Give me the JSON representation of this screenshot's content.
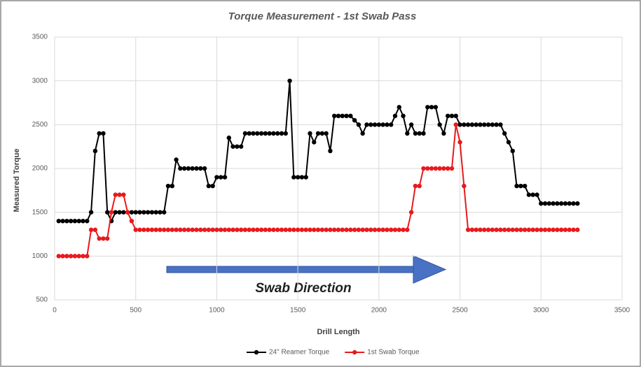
{
  "chart_data": {
    "type": "line",
    "title": "Torque Measurement - 1st Swab Pass",
    "xlabel": "Drill Length",
    "ylabel": "Measured Torque",
    "annotation": "Swab Direction",
    "xlim": [
      0,
      3500
    ],
    "xticks": [
      0,
      500,
      1000,
      1500,
      2000,
      2500,
      3000,
      3500
    ],
    "ylim": [
      500,
      3500
    ],
    "yticks": [
      500,
      1000,
      1500,
      2000,
      2500,
      3000,
      3500
    ],
    "grid": true,
    "legend": "bottom",
    "x": [
      25,
      50,
      75,
      100,
      125,
      150,
      175,
      200,
      225,
      250,
      275,
      300,
      325,
      350,
      375,
      400,
      425,
      450,
      475,
      500,
      525,
      550,
      575,
      600,
      625,
      650,
      675,
      700,
      725,
      750,
      775,
      800,
      825,
      850,
      875,
      900,
      925,
      950,
      975,
      1000,
      1025,
      1050,
      1075,
      1100,
      1125,
      1150,
      1175,
      1200,
      1225,
      1250,
      1275,
      1300,
      1325,
      1350,
      1375,
      1400,
      1425,
      1450,
      1475,
      1500,
      1525,
      1550,
      1575,
      1600,
      1625,
      1650,
      1675,
      1700,
      1725,
      1750,
      1775,
      1800,
      1825,
      1850,
      1875,
      1900,
      1925,
      1950,
      1975,
      2000,
      2025,
      2050,
      2075,
      2100,
      2125,
      2150,
      2175,
      2200,
      2225,
      2250,
      2275,
      2300,
      2325,
      2350,
      2375,
      2400,
      2425,
      2450,
      2475,
      2500,
      2525,
      2550,
      2575,
      2600,
      2625,
      2650,
      2675,
      2700,
      2725,
      2750,
      2775,
      2800,
      2825,
      2850,
      2875,
      2900,
      2925,
      2950,
      2975,
      3000,
      3025,
      3050,
      3075,
      3100,
      3125,
      3150,
      3175,
      3200,
      3225
    ],
    "series": [
      {
        "name": "24\" Reamer Torque",
        "color": "#000000",
        "values": [
          1400,
          1400,
          1400,
          1400,
          1400,
          1400,
          1400,
          1400,
          1500,
          2200,
          2400,
          2400,
          1500,
          1400,
          1500,
          1500,
          1500,
          1500,
          1500,
          1500,
          1500,
          1500,
          1500,
          1500,
          1500,
          1500,
          1500,
          1800,
          1800,
          2100,
          2000,
          2000,
          2000,
          2000,
          2000,
          2000,
          2000,
          1800,
          1800,
          1900,
          1900,
          1900,
          2350,
          2250,
          2250,
          2250,
          2400,
          2400,
          2400,
          2400,
          2400,
          2400,
          2400,
          2400,
          2400,
          2400,
          2400,
          3000,
          1900,
          1900,
          1900,
          1900,
          2400,
          2300,
          2400,
          2400,
          2400,
          2200,
          2600,
          2600,
          2600,
          2600,
          2600,
          2550,
          2500,
          2400,
          2500,
          2500,
          2500,
          2500,
          2500,
          2500,
          2500,
          2600,
          2700,
          2600,
          2400,
          2500,
          2400,
          2400,
          2400,
          2700,
          2700,
          2700,
          2500,
          2400,
          2600,
          2600,
          2600,
          2500,
          2500,
          2500,
          2500,
          2500,
          2500,
          2500,
          2500,
          2500,
          2500,
          2500,
          2400,
          2300,
          2200,
          1800,
          1800,
          1800,
          1700,
          1700,
          1700,
          1600,
          1600,
          1600,
          1600,
          1600,
          1600,
          1600,
          1600,
          1600,
          1600
        ]
      },
      {
        "name": "1st Swab Torque",
        "color": "#e8191c",
        "values": [
          1000,
          1000,
          1000,
          1000,
          1000,
          1000,
          1000,
          1000,
          1300,
          1300,
          1200,
          1200,
          1200,
          1500,
          1700,
          1700,
          1700,
          1500,
          1400,
          1300,
          1300,
          1300,
          1300,
          1300,
          1300,
          1300,
          1300,
          1300,
          1300,
          1300,
          1300,
          1300,
          1300,
          1300,
          1300,
          1300,
          1300,
          1300,
          1300,
          1300,
          1300,
          1300,
          1300,
          1300,
          1300,
          1300,
          1300,
          1300,
          1300,
          1300,
          1300,
          1300,
          1300,
          1300,
          1300,
          1300,
          1300,
          1300,
          1300,
          1300,
          1300,
          1300,
          1300,
          1300,
          1300,
          1300,
          1300,
          1300,
          1300,
          1300,
          1300,
          1300,
          1300,
          1300,
          1300,
          1300,
          1300,
          1300,
          1300,
          1300,
          1300,
          1300,
          1300,
          1300,
          1300,
          1300,
          1300,
          1500,
          1800,
          1800,
          2000,
          2000,
          2000,
          2000,
          2000,
          2000,
          2000,
          2000,
          2500,
          2300,
          1800,
          1300,
          1300,
          1300,
          1300,
          1300,
          1300,
          1300,
          1300,
          1300,
          1300,
          1300,
          1300,
          1300,
          1300,
          1300,
          1300,
          1300,
          1300,
          1300,
          1300,
          1300,
          1300,
          1300,
          1300,
          1300,
          1300,
          1300,
          1300
        ]
      }
    ]
  }
}
